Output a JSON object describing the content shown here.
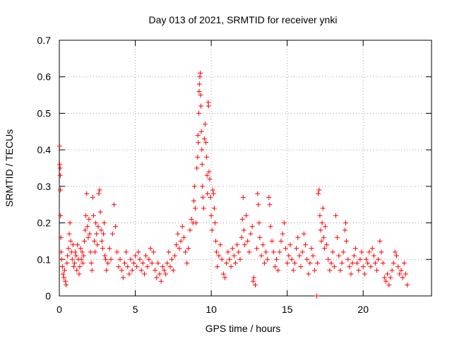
{
  "chart_data": {
    "type": "scatter",
    "title": "Day 013 of 2021, SRMTID for receiver ynki",
    "xlabel": "GPS time / hours",
    "ylabel": "SRMTID / TECUs",
    "xlim": [
      0,
      24.5
    ],
    "ylim": [
      0,
      0.7
    ],
    "xticks": [
      0,
      5,
      10,
      15,
      20
    ],
    "xtick_labels": [
      "0",
      "5",
      "10",
      "15",
      "20"
    ],
    "yticks": [
      0,
      0.1,
      0.2,
      0.3,
      0.4,
      0.5,
      0.6,
      0.7
    ],
    "ytick_labels": [
      "0",
      "0.1",
      "0.2",
      "0.3",
      "0.4",
      "0.5",
      "0.6",
      "0.7"
    ],
    "grid": true,
    "marker": "plus",
    "color": "#ff0000",
    "series": [
      {
        "name": "SRMTID",
        "points": [
          [
            0.02,
            0.41
          ],
          [
            0.03,
            0.36
          ],
          [
            0.05,
            0.35
          ],
          [
            0.06,
            0.33
          ],
          [
            0.07,
            0.29
          ],
          [
            0.08,
            0.22
          ],
          [
            0.1,
            0.16
          ],
          [
            0.12,
            0.12
          ],
          [
            0.15,
            0.1
          ],
          [
            0.2,
            0.08
          ],
          [
            0.25,
            0.06
          ],
          [
            0.3,
            0.05
          ],
          [
            0.35,
            0.07
          ],
          [
            0.4,
            0.04
          ],
          [
            0.45,
            0.03
          ],
          [
            0.5,
            0.09
          ],
          [
            0.55,
            0.11
          ],
          [
            0.6,
            0.13
          ],
          [
            0.65,
            0.17
          ],
          [
            0.7,
            0.2
          ],
          [
            0.75,
            0.15
          ],
          [
            0.8,
            0.12
          ],
          [
            0.85,
            0.1
          ],
          [
            0.9,
            0.14
          ],
          [
            0.95,
            0.08
          ],
          [
            1.0,
            0.09
          ],
          [
            1.05,
            0.12
          ],
          [
            1.1,
            0.11
          ],
          [
            1.15,
            0.07
          ],
          [
            1.2,
            0.14
          ],
          [
            1.25,
            0.1
          ],
          [
            1.3,
            0.06
          ],
          [
            1.35,
            0.08
          ],
          [
            1.4,
            0.13
          ],
          [
            1.45,
            0.1
          ],
          [
            1.5,
            0.12
          ],
          [
            1.55,
            0.09
          ],
          [
            1.6,
            0.11
          ],
          [
            1.65,
            0.15
          ],
          [
            1.7,
            0.18
          ],
          [
            1.75,
            0.22
          ],
          [
            1.8,
            0.28
          ],
          [
            1.85,
            0.19
          ],
          [
            1.9,
            0.16
          ],
          [
            1.95,
            0.21
          ],
          [
            2.0,
            0.17
          ],
          [
            2.05,
            0.12
          ],
          [
            2.1,
            0.09
          ],
          [
            2.15,
            0.07
          ],
          [
            2.2,
            0.27
          ],
          [
            2.25,
            0.22
          ],
          [
            2.3,
            0.15
          ],
          [
            2.35,
            0.12
          ],
          [
            2.4,
            0.2
          ],
          [
            2.45,
            0.17
          ],
          [
            2.5,
            0.14
          ],
          [
            2.55,
            0.19
          ],
          [
            2.6,
            0.28
          ],
          [
            2.65,
            0.29
          ],
          [
            2.7,
            0.23
          ],
          [
            2.75,
            0.18
          ],
          [
            2.8,
            0.15
          ],
          [
            2.85,
            0.13
          ],
          [
            2.9,
            0.17
          ],
          [
            2.95,
            0.2
          ],
          [
            3.0,
            0.11
          ],
          [
            3.05,
            0.1
          ],
          [
            3.1,
            0.07
          ],
          [
            3.2,
            0.09
          ],
          [
            3.3,
            0.13
          ],
          [
            3.4,
            0.1
          ],
          [
            3.5,
            0.17
          ],
          [
            3.6,
            0.25
          ],
          [
            3.7,
            0.19
          ],
          [
            3.8,
            0.12
          ],
          [
            3.9,
            0.08
          ],
          [
            4.0,
            0.1
          ],
          [
            4.1,
            0.07
          ],
          [
            4.2,
            0.05
          ],
          [
            4.3,
            0.09
          ],
          [
            4.4,
            0.12
          ],
          [
            4.5,
            0.08
          ],
          [
            4.6,
            0.06
          ],
          [
            4.7,
            0.1
          ],
          [
            4.8,
            0.07
          ],
          [
            4.9,
            0.09
          ],
          [
            5.0,
            0.11
          ],
          [
            5.1,
            0.08
          ],
          [
            5.2,
            0.12
          ],
          [
            5.3,
            0.1
          ],
          [
            5.4,
            0.07
          ],
          [
            5.5,
            0.09
          ],
          [
            5.6,
            0.06
          ],
          [
            5.7,
            0.11
          ],
          [
            5.8,
            0.08
          ],
          [
            5.9,
            0.1
          ],
          [
            6.0,
            0.13
          ],
          [
            6.1,
            0.09
          ],
          [
            6.2,
            0.12
          ],
          [
            6.3,
            0.07
          ],
          [
            6.4,
            0.05
          ],
          [
            6.5,
            0.09
          ],
          [
            6.6,
            0.06
          ],
          [
            6.7,
            0.04
          ],
          [
            6.8,
            0.08
          ],
          [
            6.9,
            0.07
          ],
          [
            7.0,
            0.06
          ],
          [
            7.1,
            0.09
          ],
          [
            7.2,
            0.12
          ],
          [
            7.3,
            0.08
          ],
          [
            7.4,
            0.1
          ],
          [
            7.5,
            0.07
          ],
          [
            7.6,
            0.11
          ],
          [
            7.7,
            0.14
          ],
          [
            7.8,
            0.17
          ],
          [
            7.9,
            0.13
          ],
          [
            8.0,
            0.15
          ],
          [
            8.1,
            0.19
          ],
          [
            8.2,
            0.16
          ],
          [
            8.3,
            0.12
          ],
          [
            8.4,
            0.09
          ],
          [
            8.5,
            0.13
          ],
          [
            8.6,
            0.18
          ],
          [
            8.7,
            0.21
          ],
          [
            8.8,
            0.2
          ],
          [
            8.85,
            0.26
          ],
          [
            8.9,
            0.3
          ],
          [
            8.95,
            0.24
          ],
          [
            9.0,
            0.2
          ],
          [
            9.05,
            0.35
          ],
          [
            9.1,
            0.38
          ],
          [
            9.12,
            0.44
          ],
          [
            9.15,
            0.42
          ],
          [
            9.18,
            0.5
          ],
          [
            9.2,
            0.56
          ],
          [
            9.22,
            0.58
          ],
          [
            9.25,
            0.6
          ],
          [
            9.28,
            0.61
          ],
          [
            9.3,
            0.55
          ],
          [
            9.32,
            0.52
          ],
          [
            9.35,
            0.45
          ],
          [
            9.38,
            0.4
          ],
          [
            9.4,
            0.36
          ],
          [
            9.42,
            0.3
          ],
          [
            9.45,
            0.27
          ],
          [
            9.5,
            0.24
          ],
          [
            9.55,
            0.43
          ],
          [
            9.6,
            0.47
          ],
          [
            9.65,
            0.42
          ],
          [
            9.7,
            0.38
          ],
          [
            9.72,
            0.33
          ],
          [
            9.75,
            0.28
          ],
          [
            9.8,
            0.53
          ],
          [
            9.82,
            0.52
          ],
          [
            9.85,
            0.34
          ],
          [
            9.9,
            0.32
          ],
          [
            9.95,
            0.27
          ],
          [
            10.0,
            0.22
          ],
          [
            10.05,
            0.18
          ],
          [
            10.1,
            0.29
          ],
          [
            10.15,
            0.28
          ],
          [
            10.2,
            0.24
          ],
          [
            10.25,
            0.2
          ],
          [
            10.3,
            0.15
          ],
          [
            10.35,
            0.12
          ],
          [
            10.4,
            0.08
          ],
          [
            10.5,
            0.11
          ],
          [
            10.6,
            0.14
          ],
          [
            10.7,
            0.1
          ],
          [
            10.8,
            0.06
          ],
          [
            10.9,
            0.05
          ],
          [
            11.0,
            0.09
          ],
          [
            11.1,
            0.12
          ],
          [
            11.2,
            0.1
          ],
          [
            11.3,
            0.08
          ],
          [
            11.4,
            0.13
          ],
          [
            11.5,
            0.11
          ],
          [
            11.6,
            0.09
          ],
          [
            11.7,
            0.14
          ],
          [
            11.8,
            0.12
          ],
          [
            11.9,
            0.1
          ],
          [
            12.0,
            0.16
          ],
          [
            12.05,
            0.21
          ],
          [
            12.1,
            0.27
          ],
          [
            12.15,
            0.18
          ],
          [
            12.2,
            0.14
          ],
          [
            12.3,
            0.22
          ],
          [
            12.4,
            0.15
          ],
          [
            12.5,
            0.12
          ],
          [
            12.6,
            0.17
          ],
          [
            12.7,
            0.19
          ],
          [
            12.75,
            0.04
          ],
          [
            12.8,
            0.05
          ],
          [
            12.9,
            0.03
          ],
          [
            13.0,
            0.13
          ],
          [
            13.05,
            0.28
          ],
          [
            13.1,
            0.25
          ],
          [
            13.15,
            0.2
          ],
          [
            13.2,
            0.16
          ],
          [
            13.3,
            0.11
          ],
          [
            13.4,
            0.14
          ],
          [
            13.5,
            0.09
          ],
          [
            13.6,
            0.12
          ],
          [
            13.7,
            0.1
          ],
          [
            13.8,
            0.27
          ],
          [
            13.85,
            0.25
          ],
          [
            13.9,
            0.19
          ],
          [
            14.0,
            0.15
          ],
          [
            14.1,
            0.12
          ],
          [
            14.2,
            0.08
          ],
          [
            14.3,
            0.1
          ],
          [
            14.4,
            0.07
          ],
          [
            14.5,
            0.12
          ],
          [
            14.6,
            0.15
          ],
          [
            14.7,
            0.17
          ],
          [
            14.8,
            0.2
          ],
          [
            14.9,
            0.13
          ],
          [
            15.0,
            0.09
          ],
          [
            15.1,
            0.11
          ],
          [
            15.2,
            0.14
          ],
          [
            15.3,
            0.1
          ],
          [
            15.4,
            0.07
          ],
          [
            15.5,
            0.09
          ],
          [
            15.6,
            0.13
          ],
          [
            15.7,
            0.16
          ],
          [
            15.8,
            0.11
          ],
          [
            15.9,
            0.08
          ],
          [
            16.0,
            0.12
          ],
          [
            16.1,
            0.17
          ],
          [
            16.2,
            0.14
          ],
          [
            16.3,
            0.1
          ],
          [
            16.4,
            0.06
          ],
          [
            16.5,
            0.09
          ],
          [
            16.6,
            0.13
          ],
          [
            16.7,
            0.11
          ],
          [
            16.8,
            0.07
          ],
          [
            16.95,
            0.0
          ],
          [
            17.0,
            0.09
          ],
          [
            17.05,
            0.28
          ],
          [
            17.1,
            0.29
          ],
          [
            17.15,
            0.22
          ],
          [
            17.2,
            0.18
          ],
          [
            17.25,
            0.15
          ],
          [
            17.3,
            0.2
          ],
          [
            17.35,
            0.24
          ],
          [
            17.4,
            0.16
          ],
          [
            17.45,
            0.13
          ],
          [
            17.5,
            0.19
          ],
          [
            17.6,
            0.14
          ],
          [
            17.7,
            0.1
          ],
          [
            17.8,
            0.07
          ],
          [
            17.9,
            0.09
          ],
          [
            18.0,
            0.12
          ],
          [
            18.1,
            0.08
          ],
          [
            18.2,
            0.22
          ],
          [
            18.3,
            0.16
          ],
          [
            18.4,
            0.11
          ],
          [
            18.5,
            0.07
          ],
          [
            18.6,
            0.09
          ],
          [
            18.7,
            0.12
          ],
          [
            18.8,
            0.18
          ],
          [
            18.85,
            0.2
          ],
          [
            18.9,
            0.15
          ],
          [
            19.0,
            0.1
          ],
          [
            19.1,
            0.08
          ],
          [
            19.2,
            0.06
          ],
          [
            19.3,
            0.09
          ],
          [
            19.4,
            0.11
          ],
          [
            19.5,
            0.13
          ],
          [
            19.6,
            0.09
          ],
          [
            19.7,
            0.07
          ],
          [
            19.8,
            0.1
          ],
          [
            19.9,
            0.12
          ],
          [
            20.0,
            0.08
          ],
          [
            20.1,
            0.06
          ],
          [
            20.2,
            0.1
          ],
          [
            20.3,
            0.09
          ],
          [
            20.4,
            0.12
          ],
          [
            20.5,
            0.08
          ],
          [
            20.6,
            0.13
          ],
          [
            20.7,
            0.11
          ],
          [
            20.8,
            0.09
          ],
          [
            20.9,
            0.07
          ],
          [
            21.0,
            0.1
          ],
          [
            21.1,
            0.15
          ],
          [
            21.2,
            0.12
          ],
          [
            21.3,
            0.09
          ],
          [
            21.4,
            0.05
          ],
          [
            21.5,
            0.04
          ],
          [
            21.6,
            0.06
          ],
          [
            21.7,
            0.03
          ],
          [
            21.8,
            0.05
          ],
          [
            21.9,
            0.07
          ],
          [
            22.0,
            0.09
          ],
          [
            22.1,
            0.12
          ],
          [
            22.2,
            0.11
          ],
          [
            22.3,
            0.08
          ],
          [
            22.4,
            0.06
          ],
          [
            22.5,
            0.07
          ],
          [
            22.6,
            0.05
          ],
          [
            22.7,
            0.09
          ],
          [
            22.8,
            0.06
          ],
          [
            22.9,
            0.03
          ]
        ]
      }
    ]
  }
}
